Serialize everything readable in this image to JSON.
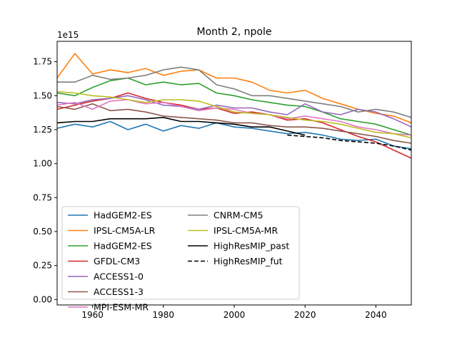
{
  "chart_data": {
    "type": "line",
    "title": "Month 2, npole",
    "xlabel": "",
    "ylabel": "",
    "y_offset_label": "1e15",
    "xlim": [
      1950,
      2050
    ],
    "ylim": [
      -0.04,
      1.9
    ],
    "x_ticks": [
      1960,
      1980,
      2000,
      2020,
      2040
    ],
    "y_ticks": [
      0.0,
      0.25,
      0.5,
      0.75,
      1.0,
      1.25,
      1.5,
      1.75
    ],
    "y_tick_labels": [
      "0.00",
      "0.25",
      "0.50",
      "0.75",
      "1.00",
      "1.25",
      "1.50",
      "1.75"
    ],
    "grid": false,
    "legend_placement": "lower-left",
    "x_start": 1950,
    "x_step": 5,
    "series": [
      {
        "name": "HadGEM2-ES",
        "color": "#1f77b4",
        "dash": "solid",
        "x_start": 1950,
        "values": [
          1.26,
          1.29,
          1.27,
          1.31,
          1.25,
          1.29,
          1.24,
          1.28,
          1.26,
          1.3,
          1.27,
          1.26,
          1.24,
          1.22,
          1.23,
          1.21,
          1.18,
          1.17,
          1.18,
          1.13,
          1.11
        ]
      },
      {
        "name": "IPSL-CM5A-LR",
        "color": "#ff7f0e",
        "dash": "solid",
        "x_start": 1950,
        "values": [
          1.63,
          1.81,
          1.66,
          1.69,
          1.67,
          1.7,
          1.65,
          1.68,
          1.69,
          1.63,
          1.63,
          1.6,
          1.54,
          1.52,
          1.54,
          1.48,
          1.44,
          1.4,
          1.37,
          1.35,
          1.3
        ]
      },
      {
        "name": "HadGEM2-ES",
        "color": "#2ca02c",
        "dash": "solid",
        "x_start": 1950,
        "values": [
          1.52,
          1.5,
          1.56,
          1.61,
          1.63,
          1.58,
          1.6,
          1.58,
          1.59,
          1.52,
          1.5,
          1.47,
          1.45,
          1.43,
          1.42,
          1.38,
          1.33,
          1.31,
          1.29,
          1.25,
          1.21
        ]
      },
      {
        "name": "GFDL-CM3",
        "color": "#d62728",
        "dash": "solid",
        "x_start": 1950,
        "values": [
          1.4,
          1.43,
          1.46,
          1.48,
          1.52,
          1.48,
          1.45,
          1.43,
          1.4,
          1.41,
          1.37,
          1.38,
          1.36,
          1.32,
          1.33,
          1.3,
          1.25,
          1.2,
          1.16,
          1.1,
          1.04
        ]
      },
      {
        "name": "ACCESS1-0",
        "color": "#9467bd",
        "dash": "solid",
        "x_start": 1950,
        "values": [
          1.45,
          1.44,
          1.47,
          1.48,
          1.5,
          1.47,
          1.43,
          1.42,
          1.4,
          1.43,
          1.41,
          1.41,
          1.38,
          1.36,
          1.44,
          1.38,
          1.36,
          1.4,
          1.38,
          1.33,
          1.27
        ]
      },
      {
        "name": "ACCESS1-3",
        "color": "#8c564b",
        "dash": "solid",
        "x_start": 1950,
        "values": [
          1.42,
          1.4,
          1.44,
          1.39,
          1.4,
          1.38,
          1.35,
          1.34,
          1.33,
          1.32,
          1.3,
          1.3,
          1.28,
          1.27,
          1.27,
          1.26,
          1.24,
          1.22,
          1.2,
          1.17,
          1.15
        ]
      },
      {
        "name": "MPI-ESM-MR",
        "color": "#e377c2",
        "dash": "solid",
        "x_start": 1950,
        "values": [
          1.43,
          1.45,
          1.4,
          1.46,
          1.47,
          1.44,
          1.45,
          1.42,
          1.39,
          1.41,
          1.4,
          1.37,
          1.36,
          1.33,
          1.35,
          1.33,
          1.31,
          1.27,
          1.25,
          1.22,
          1.21
        ]
      },
      {
        "name": "CNRM-CM5",
        "color": "#7f7f7f",
        "dash": "solid",
        "x_start": 1950,
        "values": [
          1.6,
          1.6,
          1.65,
          1.62,
          1.63,
          1.65,
          1.69,
          1.71,
          1.69,
          1.58,
          1.55,
          1.5,
          1.5,
          1.48,
          1.46,
          1.44,
          1.42,
          1.38,
          1.4,
          1.38,
          1.34
        ]
      },
      {
        "name": "IPSL-CM5A-MR",
        "color": "#bcbd22",
        "dash": "solid",
        "x_start": 1950,
        "values": [
          1.53,
          1.52,
          1.5,
          1.49,
          1.47,
          1.45,
          1.47,
          1.47,
          1.46,
          1.42,
          1.38,
          1.37,
          1.36,
          1.34,
          1.32,
          1.31,
          1.29,
          1.26,
          1.23,
          1.22,
          1.19
        ]
      },
      {
        "name": "HighResMIP_past",
        "color": "#000000",
        "dash": "solid",
        "x_start": 1950,
        "values": [
          1.3,
          1.31,
          1.31,
          1.33,
          1.33,
          1.33,
          1.34,
          1.31,
          1.31,
          1.3,
          1.29,
          1.27,
          1.27,
          1.24,
          1.21
        ]
      },
      {
        "name": "HighResMIP_fut",
        "color": "#000000",
        "dash": "dashed",
        "x_start": 2015,
        "values": [
          1.21,
          1.2,
          1.19,
          1.17,
          1.16,
          1.15,
          1.13,
          1.1
        ]
      }
    ]
  }
}
